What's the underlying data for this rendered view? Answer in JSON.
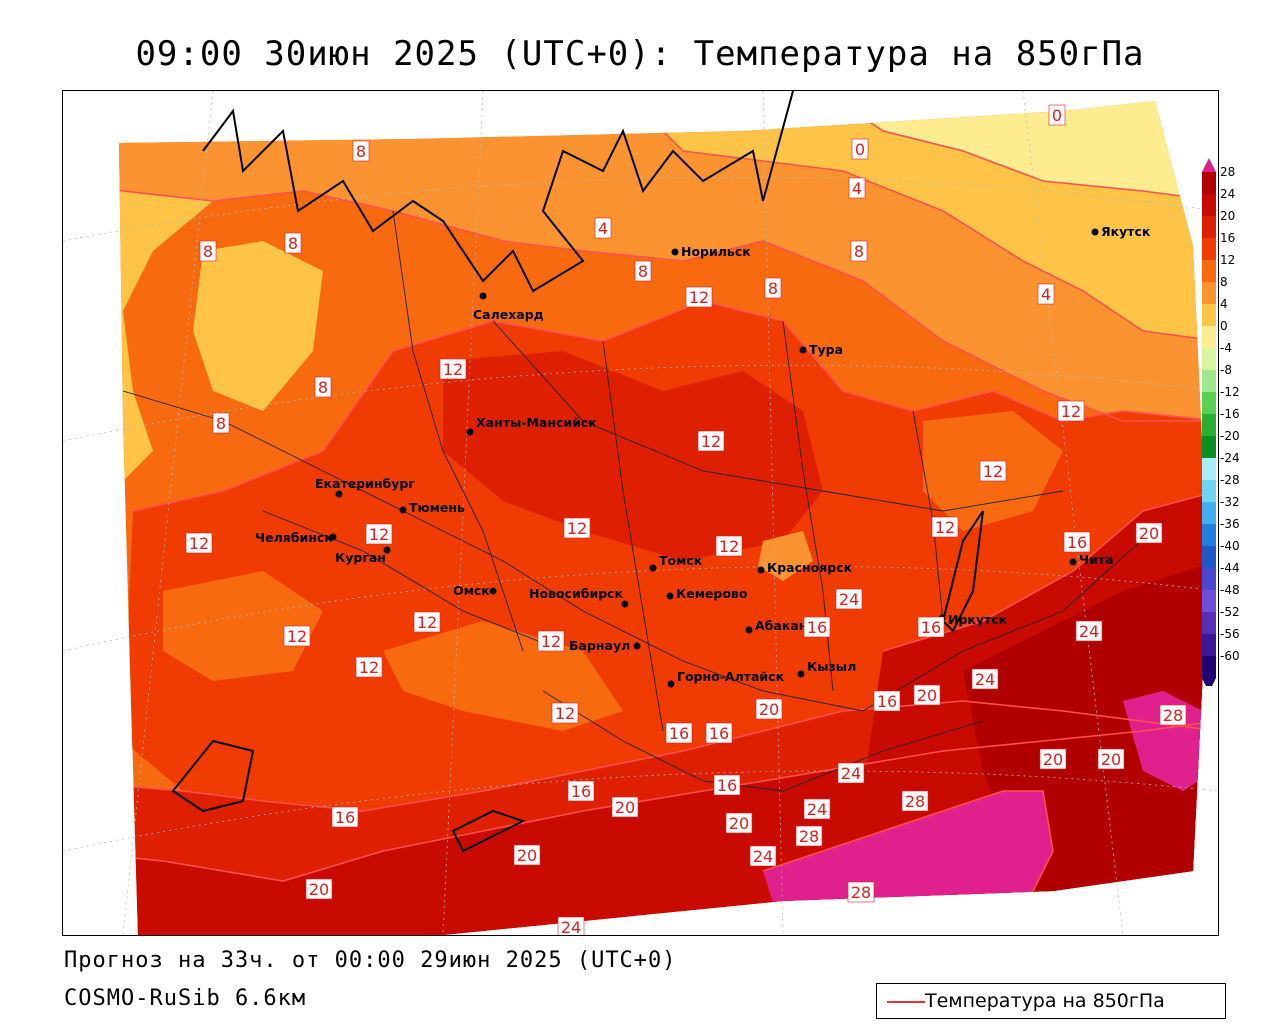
{
  "title": "09:00 30июн 2025 (UTC+0): Температура на 850гПа",
  "footer": {
    "forecast": "Прогноз на 33ч. от 00:00 29июн 2025 (UTC+0)",
    "model": "COSMO-RuSib 6.6км"
  },
  "legend": {
    "label": "Температура на 850гПа",
    "line_color": "#e83232"
  },
  "colorbar": {
    "ticks": [
      "28",
      "24",
      "20",
      "16",
      "12",
      "8",
      "4",
      "0",
      "-4",
      "-8",
      "-12",
      "-16",
      "-20",
      "-24",
      "-28",
      "-32",
      "-36",
      "-40",
      "-44",
      "-48",
      "-52",
      "-56",
      "-60"
    ],
    "colors": [
      "#e0208c",
      "#b00000",
      "#c80a00",
      "#de2000",
      "#f03c00",
      "#f86a10",
      "#fb9430",
      "#fdc448",
      "#feec90",
      "#d8f5a0",
      "#a0e890",
      "#58d050",
      "#28b030",
      "#0a9020",
      "#a8eef8",
      "#70d4f4",
      "#40b0f0",
      "#2080e0",
      "#2058c8",
      "#4848d0",
      "#6c50d8",
      "#5830b8",
      "#3c1898",
      "#200070"
    ]
  },
  "cities": [
    {
      "name": "Норильск"
    },
    {
      "name": "Якутск"
    },
    {
      "name": "Салехард"
    },
    {
      "name": "Тура"
    },
    {
      "name": "Ханты-Мансийск"
    },
    {
      "name": "Екатеринбург"
    },
    {
      "name": "Тюмень"
    },
    {
      "name": "Челябинск"
    },
    {
      "name": "Курган"
    },
    {
      "name": "Омск"
    },
    {
      "name": "Новосибирск"
    },
    {
      "name": "Томск"
    },
    {
      "name": "Кемерово"
    },
    {
      "name": "Красноярск"
    },
    {
      "name": "Барнаул"
    },
    {
      "name": "Абакан"
    },
    {
      "name": "Иркутск"
    },
    {
      "name": "Чита"
    },
    {
      "name": "Горно-Алтайск"
    },
    {
      "name": "Кызыл"
    }
  ],
  "isotherm_labels": [
    "8",
    "8",
    "8",
    "8",
    "8",
    "8",
    "8",
    "8",
    "4",
    "4",
    "4",
    "0",
    "0",
    "12",
    "12",
    "12",
    "12",
    "12",
    "12",
    "12",
    "12",
    "12",
    "12",
    "12",
    "12",
    "12",
    "12",
    "12",
    "16",
    "16",
    "16",
    "16",
    "16",
    "16",
    "16",
    "16",
    "16",
    "20",
    "20",
    "20",
    "20",
    "20",
    "20",
    "20",
    "20",
    "20",
    "24",
    "24",
    "24",
    "24",
    "24",
    "24",
    "24",
    "28",
    "28",
    "28",
    "28"
  ]
}
